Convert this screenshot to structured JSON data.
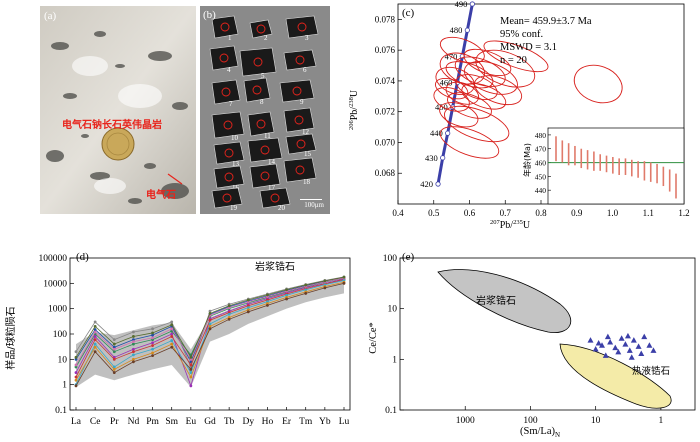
{
  "panel_a": {
    "label": "(a)",
    "rock_label": "电气石钠长石英伟晶岩",
    "mineral_label": "电气石",
    "colors": {
      "label_red": "#e8241c",
      "rock_light": "#d9d6cf",
      "rock_dark": "#3a3a38"
    }
  },
  "panel_b": {
    "label": "(b)",
    "grain_numbers": [
      "1",
      "2",
      "3",
      "4",
      "5",
      "6",
      "7",
      "8",
      "9",
      "10",
      "11",
      "12",
      "13",
      "14",
      "15",
      "16",
      "17",
      "18",
      "19",
      "20"
    ],
    "scale_bar": "100μm"
  },
  "chart_data": [
    {
      "id": "c",
      "type": "scatter",
      "label": "(c)",
      "description": "U-Pb concordia diagram with error ellipses",
      "xlabel_sup": "207",
      "xlabel_main": "Pb/",
      "xlabel_sup2": "235",
      "xlabel_end": "U",
      "ylabel_sup": "206",
      "ylabel_main": "Pb/",
      "ylabel_sup2": "238",
      "ylabel_end": "U",
      "xlim": [
        0.4,
        1.2
      ],
      "ylim": [
        0.066,
        0.079
      ],
      "xticks": [
        "0.4",
        "0.5",
        "0.6",
        "0.7",
        "0.8",
        "0.9",
        "1.0",
        "1.1",
        "1.2"
      ],
      "yticks": [
        "0.068",
        "0.070",
        "0.072",
        "0.074",
        "0.076",
        "0.078"
      ],
      "concordia_ages": [
        "420",
        "430",
        "440",
        "450",
        "460",
        "470",
        "480",
        "490"
      ],
      "concordia_points": [
        {
          "age": "420",
          "x": 0.512,
          "y": 0.0673
        },
        {
          "age": "430",
          "x": 0.525,
          "y": 0.069
        },
        {
          "age": "440",
          "x": 0.539,
          "y": 0.0706
        },
        {
          "age": "450",
          "x": 0.553,
          "y": 0.0723
        },
        {
          "age": "460",
          "x": 0.566,
          "y": 0.0739
        },
        {
          "age": "470",
          "x": 0.58,
          "y": 0.0756
        },
        {
          "age": "480",
          "x": 0.594,
          "y": 0.0773
        },
        {
          "age": "490",
          "x": 0.608,
          "y": 0.079
        }
      ],
      "stats": {
        "mean": "Mean= 459.9±3.7 Ma",
        "conf": "95% conf.",
        "mswd": "MSWD = 3.1",
        "n": "n = 20"
      },
      "ellipses": [
        {
          "x": 0.55,
          "y": 0.0728,
          "rx": 0.03,
          "ry": 0.0012
        },
        {
          "x": 0.56,
          "y": 0.074,
          "rx": 0.035,
          "ry": 0.0013
        },
        {
          "x": 0.58,
          "y": 0.0748,
          "rx": 0.04,
          "ry": 0.0015
        },
        {
          "x": 0.6,
          "y": 0.0744,
          "rx": 0.03,
          "ry": 0.0016
        },
        {
          "x": 0.62,
          "y": 0.0736,
          "rx": 0.03,
          "ry": 0.0014
        },
        {
          "x": 0.58,
          "y": 0.0732,
          "rx": 0.028,
          "ry": 0.0011
        },
        {
          "x": 0.6,
          "y": 0.0724,
          "rx": 0.03,
          "ry": 0.0015
        },
        {
          "x": 0.63,
          "y": 0.0746,
          "rx": 0.035,
          "ry": 0.0017
        },
        {
          "x": 0.64,
          "y": 0.073,
          "rx": 0.03,
          "ry": 0.0015
        },
        {
          "x": 0.66,
          "y": 0.0742,
          "rx": 0.04,
          "ry": 0.0018
        },
        {
          "x": 0.68,
          "y": 0.0734,
          "rx": 0.035,
          "ry": 0.0016
        },
        {
          "x": 0.7,
          "y": 0.0748,
          "rx": 0.045,
          "ry": 0.002
        },
        {
          "x": 0.73,
          "y": 0.0756,
          "rx": 0.03,
          "ry": 0.0022
        },
        {
          "x": 0.62,
          "y": 0.0712,
          "rx": 0.04,
          "ry": 0.0022
        },
        {
          "x": 0.6,
          "y": 0.07,
          "rx": 0.035,
          "ry": 0.002
        },
        {
          "x": 0.58,
          "y": 0.076,
          "rx": 0.03,
          "ry": 0.0015
        },
        {
          "x": 0.57,
          "y": 0.0718,
          "rx": 0.03,
          "ry": 0.0013
        },
        {
          "x": 0.65,
          "y": 0.0752,
          "rx": 0.03,
          "ry": 0.0016
        },
        {
          "x": 0.55,
          "y": 0.0735,
          "rx": 0.025,
          "ry": 0.0011
        },
        {
          "x": 0.96,
          "y": 0.0738,
          "rx": 0.05,
          "ry": 0.0016
        }
      ],
      "inset": {
        "ylabel": "年龄(Ma)",
        "ylim": [
          430,
          485
        ],
        "yticks": [
          "440",
          "450",
          "460",
          "470",
          "480"
        ],
        "mean": 459.9,
        "ages": [
          470,
          468,
          466,
          465,
          463,
          462,
          461,
          460,
          459,
          458,
          457,
          457,
          456,
          455,
          454,
          453,
          452,
          450,
          447,
          443
        ],
        "errors": [
          9,
          8,
          8,
          7,
          7,
          7,
          7,
          6,
          6,
          6,
          6,
          6,
          6,
          6,
          7,
          7,
          7,
          7,
          8,
          9
        ]
      }
    },
    {
      "id": "d",
      "type": "line",
      "label": "(d)",
      "description": "Chondrite-normalized REE patterns",
      "ylabel": "样品/球粒陨石",
      "categories": [
        "La",
        "Ce",
        "Pr",
        "Nd",
        "Pm",
        "Sm",
        "Eu",
        "Gd",
        "Tb",
        "Dy",
        "Ho",
        "Er",
        "Tm",
        "Yb",
        "Lu"
      ],
      "yscale": "log",
      "ylim": [
        0.1,
        100000
      ],
      "yticks": [
        "0.1",
        "1",
        "10",
        "100",
        "1000",
        "10000",
        "100000"
      ],
      "field_label": "岩浆锆石",
      "field_lower": [
        0.8,
        2.5,
        1.5,
        2.5,
        4,
        6,
        0.8,
        50,
        100,
        250,
        500,
        1000,
        1800,
        2800,
        4000
      ],
      "field_upper": [
        40,
        120,
        90,
        140,
        220,
        280,
        25,
        450,
        900,
        1600,
        2800,
        4500,
        6500,
        9500,
        16000
      ],
      "series": [
        {
          "color": "#888888",
          "values": [
            20,
            300,
            60,
            120,
            160,
            300,
            5,
            800,
            1500,
            2400,
            3800,
            6000,
            9000,
            13000,
            18000
          ]
        },
        {
          "color": "#1f4fa8",
          "values": [
            10,
            150,
            30,
            60,
            90,
            200,
            8,
            600,
            1200,
            2000,
            3200,
            5200,
            8000,
            12000,
            17000
          ]
        },
        {
          "color": "#2e8b57",
          "values": [
            5,
            100,
            20,
            40,
            60,
            130,
            15,
            500,
            1000,
            1700,
            2800,
            4600,
            7200,
            11000,
            16000
          ]
        },
        {
          "color": "#9b30b5",
          "values": [
            3,
            80,
            12,
            25,
            45,
            100,
            0.9,
            400,
            800,
            1500,
            2500,
            4200,
            6800,
            10000,
            15000
          ]
        },
        {
          "color": "#cc3333",
          "values": [
            2,
            60,
            10,
            20,
            35,
            80,
            6,
            350,
            700,
            1300,
            2200,
            3800,
            6200,
            9500,
            14000
          ]
        },
        {
          "color": "#3aa8c8",
          "values": [
            1,
            40,
            5,
            15,
            25,
            55,
            3,
            250,
            600,
            1100,
            1900,
            3400,
            5600,
            8800,
            13000
          ]
        },
        {
          "color": "#d48a1e",
          "values": [
            1.5,
            30,
            4,
            10,
            18,
            40,
            2,
            200,
            450,
            900,
            1600,
            2800,
            4600,
            7500,
            11000
          ]
        },
        {
          "color": "#6a3f2a",
          "values": [
            0.9,
            20,
            3,
            8,
            14,
            30,
            4,
            160,
            380,
            750,
            1350,
            2400,
            4000,
            6600,
            10000
          ]
        },
        {
          "color": "#d070b0",
          "values": [
            6,
            120,
            25,
            50,
            70,
            160,
            10,
            550,
            1100,
            1850,
            3000,
            4900,
            7600,
            11500,
            16500
          ]
        },
        {
          "color": "#556b2f",
          "values": [
            12,
            200,
            40,
            80,
            110,
            230,
            12,
            650,
            1300,
            2200,
            3500,
            5600,
            8600,
            12500,
            17500
          ]
        }
      ]
    },
    {
      "id": "e",
      "type": "scatter",
      "label": "(e)",
      "description": "Ce/Ce* vs (Sm/La)N discrimination diagram",
      "ylabel": "Ce/Ce*",
      "xlabel": "(Sm/La)",
      "xlabel_sub": "N",
      "xscale": "log-reversed",
      "xlim": [
        10000,
        0.3
      ],
      "xticks": [
        "1000",
        "100",
        "10",
        "1"
      ],
      "yscale": "log",
      "ylim": [
        0.1,
        100
      ],
      "yticks": [
        "0.1",
        "1",
        "10",
        "100"
      ],
      "field_magmatic_label": "岩浆锆石",
      "field_hydro_label": "热液锆石",
      "points": [
        {
          "x": 12,
          "y": 2.4
        },
        {
          "x": 9,
          "y": 2.1
        },
        {
          "x": 8,
          "y": 1.9
        },
        {
          "x": 6,
          "y": 2.2
        },
        {
          "x": 5,
          "y": 1.7
        },
        {
          "x": 4,
          "y": 2.6
        },
        {
          "x": 3.5,
          "y": 2.0
        },
        {
          "x": 3,
          "y": 1.5
        },
        {
          "x": 2.6,
          "y": 2.4
        },
        {
          "x": 2.2,
          "y": 1.8
        },
        {
          "x": 2,
          "y": 1.3
        },
        {
          "x": 1.8,
          "y": 2.8
        },
        {
          "x": 4.5,
          "y": 1.4
        },
        {
          "x": 7,
          "y": 1.2
        },
        {
          "x": 10,
          "y": 1.6
        },
        {
          "x": 1.5,
          "y": 1.9
        },
        {
          "x": 2.8,
          "y": 1.1
        },
        {
          "x": 6.5,
          "y": 2.8
        },
        {
          "x": 3.2,
          "y": 2.9
        },
        {
          "x": 1.3,
          "y": 1.5
        }
      ]
    }
  ]
}
